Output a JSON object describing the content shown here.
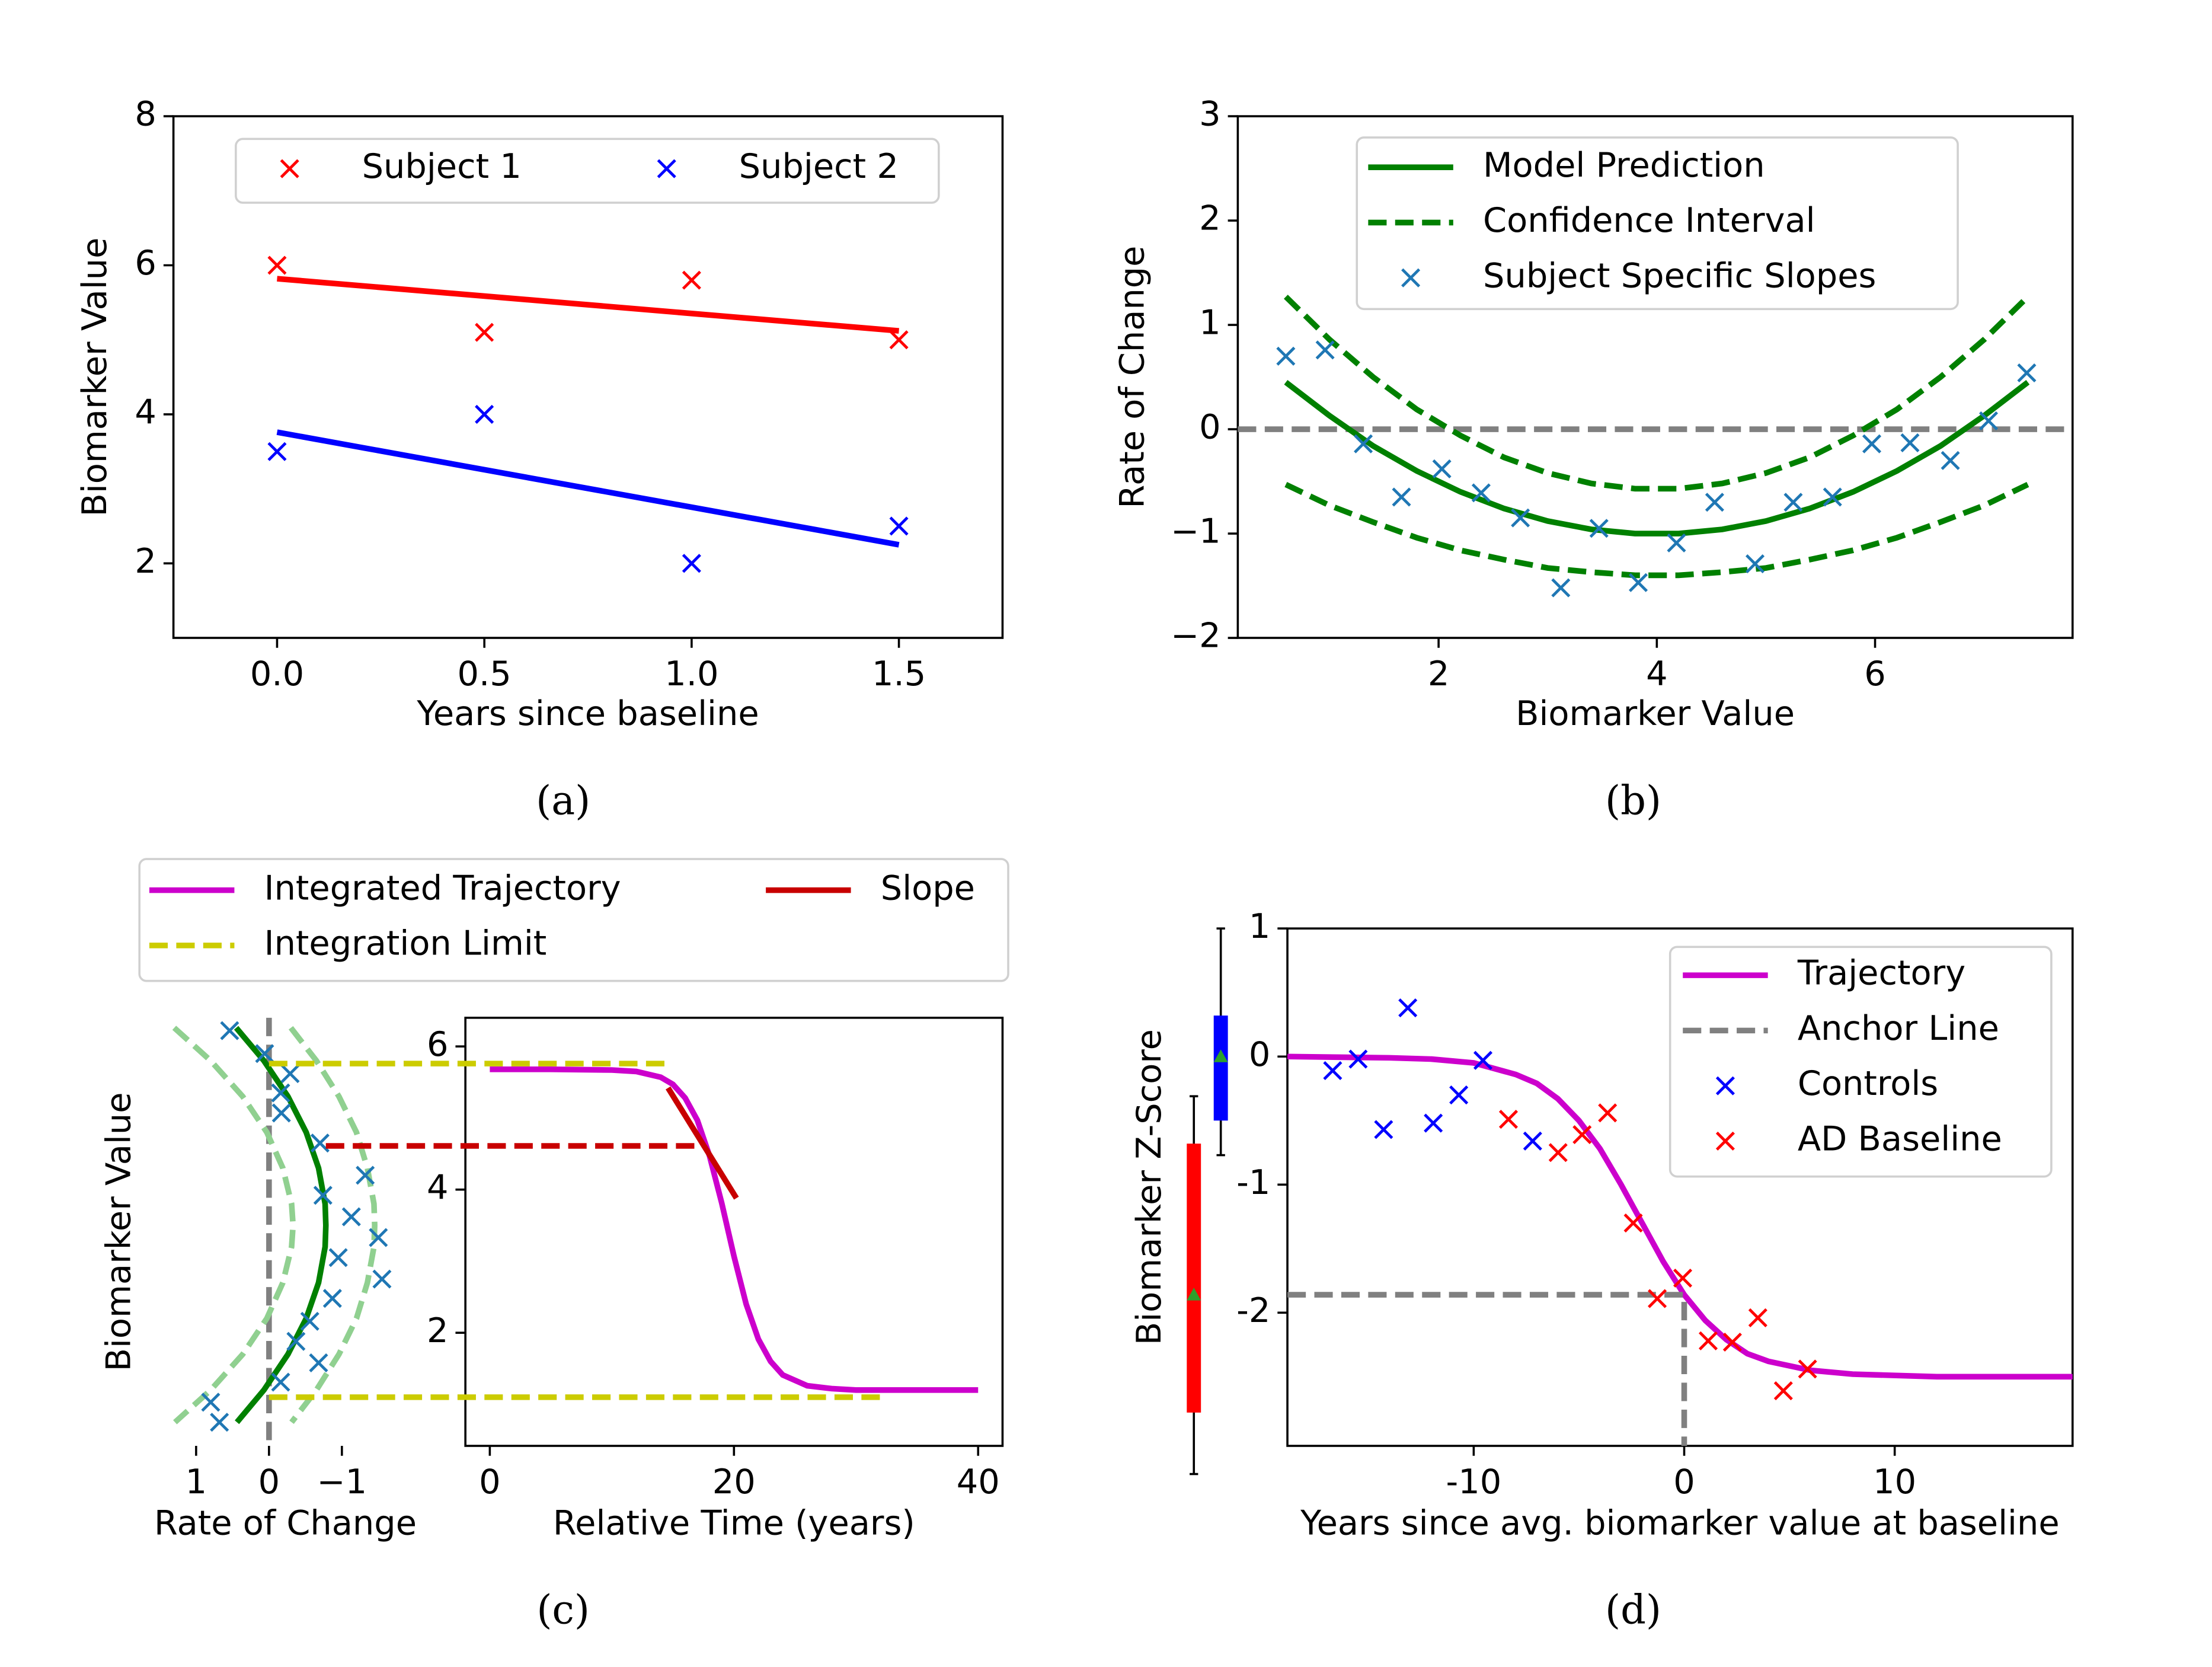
{
  "chart_data": [
    {
      "type": "scatter",
      "caption": "(a)",
      "xlabel": "Years since baseline",
      "ylabel": "Biomarker Value",
      "xlim": [
        -0.25,
        1.75
      ],
      "ylim": [
        1,
        8
      ],
      "xticks": [
        {
          "value": 0,
          "label": "0.0"
        },
        {
          "value": 0.5,
          "label": "0.5"
        },
        {
          "value": 1,
          "label": "1.0"
        },
        {
          "value": 1.5,
          "label": "1.5"
        }
      ],
      "yticks": [
        2,
        4,
        6,
        8
      ],
      "legend": "upper center",
      "series": [
        {
          "name": "Subject 1",
          "kind": "scatter",
          "color": "#ff0000",
          "x": [
            0,
            0.5,
            1,
            1.5
          ],
          "values": [
            6,
            5.1,
            5.8,
            5
          ]
        },
        {
          "name": "Subject 2",
          "kind": "scatter",
          "color": "#0000ff",
          "x": [
            0,
            0.5,
            1,
            1.5
          ],
          "values": [
            3.5,
            4,
            2,
            2.5
          ]
        },
        {
          "kind": "line",
          "color": "#ff0000",
          "x": [
            0,
            1.5
          ],
          "values": [
            5.82,
            5.12
          ]
        },
        {
          "kind": "line",
          "color": "#0000ff",
          "x": [
            0,
            1.5
          ],
          "values": [
            3.76,
            2.25
          ]
        }
      ]
    },
    {
      "type": "line",
      "caption": "(b)",
      "xlabel": "Biomarker Value",
      "ylabel": "Rate of Change",
      "xlim": [
        0.16,
        7.81
      ],
      "ylim": [
        -2,
        3
      ],
      "xticks": [
        2,
        4,
        6
      ],
      "yticks": [
        {
          "value": -2,
          "label": "−2"
        },
        {
          "value": -1,
          "label": "−1"
        },
        0,
        1,
        2,
        3
      ],
      "legend": "upper center",
      "series": [
        {
          "kind": "line",
          "color": "#808080",
          "dash": true,
          "x": [
            0.16,
            7.81
          ],
          "values": [
            0,
            0
          ]
        },
        {
          "name": "Model Prediction",
          "kind": "line",
          "color": "#008000",
          "x": [
            0.6,
            1.0,
            1.4,
            1.8,
            2.2,
            2.6,
            3.0,
            3.4,
            3.8,
            4.2,
            4.6,
            5.0,
            5.4,
            5.8,
            6.2,
            6.6,
            7.0,
            7.4
          ],
          "values": [
            0.45,
            0.13,
            -0.16,
            -0.4,
            -0.6,
            -0.76,
            -0.88,
            -0.96,
            -1.0,
            -1.0,
            -0.96,
            -0.88,
            -0.76,
            -0.6,
            -0.4,
            -0.16,
            0.13,
            0.45
          ]
        },
        {
          "name": "Confidence Interval",
          "kind": "line",
          "color": "#008000",
          "dash": true,
          "x": [
            0.6,
            1.0,
            1.4,
            1.8,
            2.2,
            2.6,
            3.0,
            3.4,
            3.8,
            4.2,
            4.6,
            5.0,
            5.4,
            5.8,
            6.2,
            6.6,
            7.0,
            7.4
          ],
          "values": [
            1.27,
            0.86,
            0.5,
            0.19,
            -0.06,
            -0.27,
            -0.42,
            -0.52,
            -0.57,
            -0.57,
            -0.52,
            -0.42,
            -0.27,
            -0.06,
            0.19,
            0.5,
            0.86,
            1.27
          ]
        },
        {
          "kind": "line",
          "color": "#008000",
          "dash": true,
          "x": [
            0.6,
            1.0,
            1.4,
            1.8,
            2.2,
            2.6,
            3.0,
            3.4,
            3.8,
            4.2,
            4.6,
            5.0,
            5.4,
            5.8,
            6.2,
            6.6,
            7.0,
            7.4
          ],
          "values": [
            -0.53,
            -0.73,
            -0.89,
            -1.04,
            -1.16,
            -1.25,
            -1.33,
            -1.37,
            -1.4,
            -1.4,
            -1.37,
            -1.33,
            -1.25,
            -1.16,
            -1.04,
            -0.89,
            -0.73,
            -0.53
          ]
        },
        {
          "name": "Subject Specific Slopes",
          "kind": "scatter",
          "color": "#1f77b4",
          "x": [
            0.6,
            0.96,
            1.31,
            1.66,
            2.03,
            2.39,
            2.75,
            3.12,
            3.47,
            3.83,
            4.18,
            4.53,
            4.9,
            5.25,
            5.61,
            5.97,
            6.32,
            6.69,
            7.04,
            7.39
          ],
          "values": [
            0.7,
            0.76,
            -0.14,
            -0.65,
            -0.38,
            -0.61,
            -0.85,
            -1.52,
            -0.95,
            -1.47,
            -1.09,
            -0.7,
            -1.29,
            -0.7,
            -0.65,
            -0.14,
            -0.13,
            -0.3,
            0.08,
            0.54
          ]
        }
      ]
    },
    {
      "type": "line",
      "caption": "(c)",
      "ylabel": "Biomarker Value",
      "ylim": [
        0.42,
        6.4
      ],
      "yticks": [
        2,
        4,
        6
      ],
      "legend": "upper center",
      "panels": [
        {
          "xlabel": "Rate of Change",
          "xlim": [
            1.35,
            -1.8
          ],
          "xticks": [
            1,
            0,
            {
              "value": -1,
              "label": "−1"
            }
          ],
          "series": [
            {
              "kind": "line",
              "color": "#808080",
              "dash": true,
              "x": [
                0,
                0
              ],
              "values": [
                6.4,
                0.42
              ]
            },
            {
              "kind": "line",
              "color": "#90d090",
              "dash": true,
              "x": [
                1.3,
                0.8,
                0.36,
                0.03,
                -0.19,
                -0.31,
                -0.33,
                -0.31,
                -0.19,
                0.03,
                0.36,
                0.8,
                1.29
              ],
              "values": [
                6.26,
                5.8,
                5.3,
                4.8,
                4.3,
                3.8,
                3.5,
                3.2,
                2.7,
                2.2,
                1.7,
                1.2,
                0.75
              ]
            },
            {
              "kind": "line",
              "color": "#90d090",
              "dash": true,
              "x": [
                -0.3,
                -0.65,
                -0.96,
                -1.2,
                -1.35,
                -1.44,
                -1.45,
                -1.44,
                -1.35,
                -1.2,
                -0.96,
                -0.65,
                -0.31
              ],
              "values": [
                6.26,
                5.8,
                5.3,
                4.8,
                4.3,
                3.8,
                3.5,
                3.2,
                2.7,
                2.2,
                1.7,
                1.2,
                0.75
              ]
            },
            {
              "kind": "line",
              "color": "#008000",
              "x": [
                0.45,
                0.07,
                -0.26,
                -0.51,
                -0.68,
                -0.77,
                -0.78,
                -0.77,
                -0.68,
                -0.51,
                -0.26,
                0.07,
                0.44
              ],
              "values": [
                6.26,
                5.8,
                5.3,
                4.8,
                4.3,
                3.8,
                3.5,
                3.2,
                2.7,
                2.2,
                1.7,
                1.2,
                0.75
              ]
            },
            {
              "kind": "scatter",
              "color": "#1f77b4",
              "x": [
                0.54,
                0.06,
                -0.29,
                -0.16,
                -0.17,
                -0.7,
                -1.32,
                -0.74,
                -1.13,
                -1.5,
                -0.95,
                -1.55,
                -0.87,
                -0.56,
                -0.37,
                -0.68,
                -0.16,
                0.8,
                0.68
              ],
              "values": [
                6.22,
                5.9,
                5.62,
                5.35,
                5.07,
                4.65,
                4.2,
                3.92,
                3.62,
                3.33,
                3.05,
                2.75,
                2.48,
                2.16,
                1.88,
                1.58,
                1.31,
                1.03,
                0.75
              ]
            }
          ]
        },
        {
          "xlabel": "Relative Time (years)",
          "xlim": [
            -2,
            42
          ],
          "xticks": [
            0,
            20,
            40
          ],
          "series": [
            {
              "name": "Integrated Trajectory",
              "kind": "line",
              "color": "#cc00cc",
              "x": [
                0,
                5,
                10,
                12,
                14,
                15,
                16,
                17,
                18,
                19,
                20,
                21,
                22,
                23,
                24,
                26,
                28,
                30,
                35,
                40
              ],
              "values": [
                5.68,
                5.68,
                5.67,
                5.65,
                5.57,
                5.47,
                5.28,
                4.97,
                4.47,
                3.81,
                3.07,
                2.4,
                1.91,
                1.6,
                1.41,
                1.26,
                1.22,
                1.2,
                1.2,
                1.2
              ]
            },
            {
              "name": "Slope",
              "kind": "line",
              "color": "#c80000",
              "x": [
                14.6,
                20.2
              ],
              "values": [
                5.42,
                3.88
              ]
            }
          ]
        }
      ],
      "bridges": [
        {
          "name": "Integration Limit",
          "kind": "line",
          "color": "#cccc00",
          "dash": true,
          "x": [
            0,
            15
          ],
          "values": [
            5.76,
            5.76
          ]
        },
        {
          "kind": "line",
          "color": "#cccc00",
          "dash": true,
          "x": [
            0,
            32.4
          ],
          "values": [
            1.1,
            1.1
          ]
        },
        {
          "kind": "line",
          "color": "#c80000",
          "dash": true,
          "x": [
            -0.78,
            17.4
          ],
          "values": [
            4.61,
            4.61
          ]
        }
      ]
    },
    {
      "type": "line",
      "caption": "(d)",
      "xlabel": "Years since avg. biomarker value at baseline",
      "ylabel": "Biomarker Z-Score",
      "xlim": [
        -18.85,
        18.45
      ],
      "ylim": [
        -3.04,
        1
      ],
      "xticks": [
        -10,
        0,
        10
      ],
      "yticks": [
        -2,
        -1,
        0,
        1
      ],
      "legend": "upper right",
      "series": [
        {
          "name": "Trajectory",
          "kind": "line",
          "color": "#cc00cc",
          "x": [
            -18.85,
            -14,
            -12,
            -10,
            -8,
            -7,
            -6,
            -5,
            -4,
            -3,
            -2,
            -1,
            0,
            1,
            2,
            3,
            4,
            6,
            8,
            12,
            18.45
          ],
          "values": [
            0,
            -0.01,
            -0.02,
            -0.05,
            -0.14,
            -0.21,
            -0.33,
            -0.5,
            -0.72,
            -1.0,
            -1.3,
            -1.6,
            -1.86,
            -2.06,
            -2.21,
            -2.32,
            -2.38,
            -2.45,
            -2.48,
            -2.5,
            -2.5
          ]
        },
        {
          "name": "Anchor Line",
          "kind": "line",
          "color": "#808080",
          "dash": true,
          "x": [
            -18.85,
            0,
            0
          ],
          "values": [
            -1.86,
            -1.86,
            -3.04
          ]
        },
        {
          "name": "Controls",
          "kind": "scatter",
          "color": "#0000ff",
          "x": [
            -16.7,
            -15.49,
            -14.28,
            -13.13,
            -11.92,
            -10.71,
            -9.56,
            -7.2
          ],
          "values": [
            -0.11,
            -0.02,
            -0.57,
            0.38,
            -0.52,
            -0.3,
            -0.03,
            -0.66
          ]
        },
        {
          "name": "AD Baseline",
          "kind": "scatter",
          "color": "#ff0000",
          "x": [
            -8.35,
            -5.99,
            -4.85,
            -3.64,
            -2.42,
            -1.28,
            -0.07,
            1.14,
            2.29,
            3.5,
            4.71,
            5.86
          ],
          "values": [
            -0.49,
            -0.75,
            -0.61,
            -0.44,
            -1.3,
            -1.89,
            -1.73,
            -2.22,
            -2.23,
            -2.04,
            -2.61,
            -2.44
          ]
        }
      ],
      "boxplots": [
        {
          "color": "#0000ff",
          "whisker_low": -0.77,
          "q1": -0.5,
          "q3": 0.32,
          "whisker_high": 1,
          "mean": 0
        },
        {
          "color": "#ff0000",
          "whisker_low": -3.26,
          "q1": -2.78,
          "q3": -0.68,
          "whisker_high": -0.31,
          "mean": -1.86
        }
      ]
    }
  ]
}
